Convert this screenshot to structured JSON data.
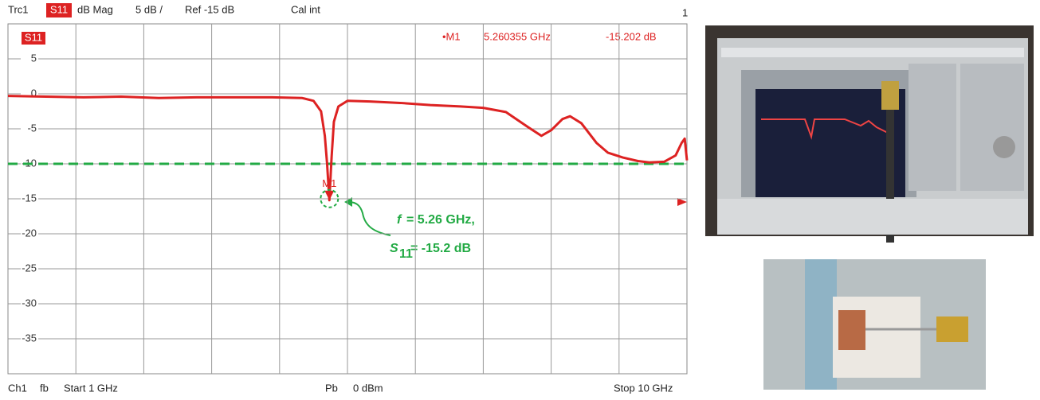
{
  "chart_data": {
    "type": "line",
    "header": {
      "trace": "Trc1",
      "param": "S11",
      "format": "dB Mag",
      "scale": "5 dB /",
      "ref": "Ref -15 dB",
      "cal": "Cal int",
      "num": "1"
    },
    "footer": {
      "channel": "Ch1",
      "mode": "fb",
      "start": "Start 1 GHz",
      "power_label": "Pb",
      "power": "0 dBm",
      "stop": "Stop 10 GHz"
    },
    "trace_label": "S11",
    "xlim": [
      1,
      10
    ],
    "x_divisions": 10,
    "ylim": [
      -40,
      10
    ],
    "yticks": [
      5,
      0,
      -5,
      -10,
      -15,
      -20,
      -25,
      -30,
      -35
    ],
    "grid": true,
    "series": [
      {
        "color": "#dd2222",
        "x": [
          1,
          1.5,
          2,
          2.5,
          3,
          3.5,
          4,
          4.5,
          4.9,
          5.05,
          5.15,
          5.2,
          5.23,
          5.26,
          5.29,
          5.32,
          5.38,
          5.5,
          5.8,
          6.2,
          6.6,
          7.0,
          7.3,
          7.6,
          7.9,
          8.07,
          8.2,
          8.35,
          8.45,
          8.6,
          8.8,
          8.95,
          9.15,
          9.35,
          9.5,
          9.7,
          9.85,
          9.93,
          9.97,
          10
        ],
        "values": [
          -0.3,
          -0.4,
          -0.5,
          -0.4,
          -0.6,
          -0.5,
          -0.5,
          -0.5,
          -0.6,
          -1.0,
          -2.5,
          -6,
          -10,
          -15.202,
          -9,
          -4,
          -1.8,
          -1.0,
          -1.1,
          -1.3,
          -1.6,
          -1.8,
          -2.0,
          -2.6,
          -4.8,
          -6.0,
          -5.2,
          -3.6,
          -3.2,
          -4.2,
          -7.0,
          -8.4,
          -9.1,
          -9.6,
          -9.8,
          -9.7,
          -8.8,
          -7.0,
          -6.4,
          -9.5
        ]
      }
    ],
    "threshold": {
      "value": -10,
      "color": "#22aa44"
    },
    "marker": {
      "name": "M1",
      "label": "•M1",
      "x": 5.260355,
      "y": -15.202,
      "freq_label": "5.260355 GHz",
      "level_label": "-15.202 dB"
    },
    "annotation": {
      "f_symbol": "f",
      "f_text": "= 5.26 GHz,",
      "s_symbol": "S",
      "s_sub": "11",
      "s_text": "= -15.2 dB"
    }
  }
}
